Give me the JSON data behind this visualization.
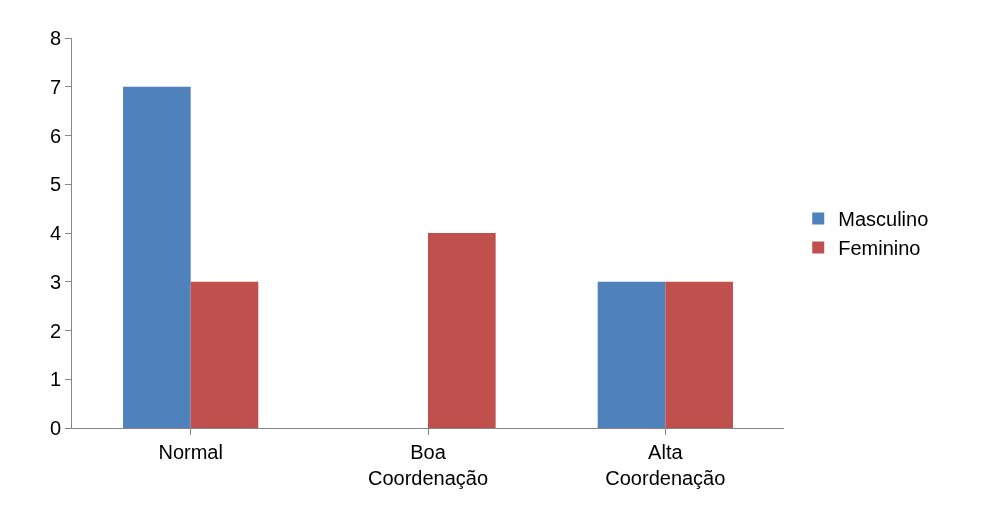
{
  "chart_data": {
    "type": "bar",
    "categories": [
      "Normal",
      "Boa Coordenação",
      "Alta Coordenação"
    ],
    "series": [
      {
        "name": "Masculino",
        "color": "#4f81bd",
        "values": [
          7,
          0,
          3
        ]
      },
      {
        "name": "Feminino",
        "color": "#c0504d",
        "values": [
          3,
          4,
          3
        ]
      }
    ],
    "ylim": [
      0,
      8
    ],
    "yticks": [
      0,
      1,
      2,
      3,
      4,
      5,
      6,
      7,
      8
    ],
    "legend": "right"
  }
}
